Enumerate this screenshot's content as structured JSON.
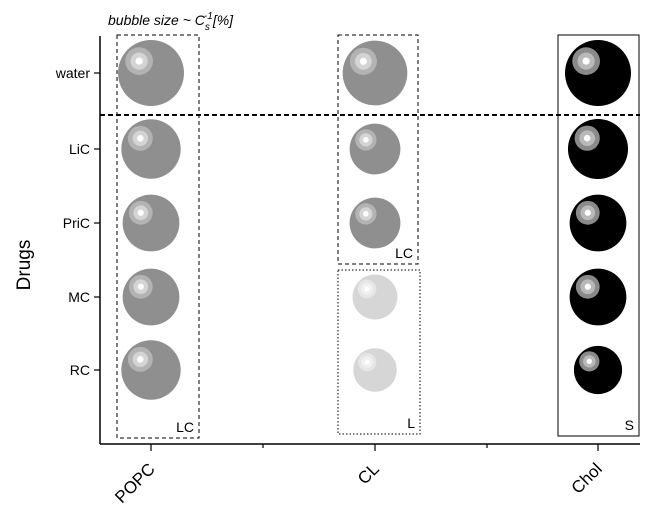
{
  "chart_data": {
    "type": "scatter",
    "title": "",
    "xlabel": "",
    "ylabel": "Drugs",
    "annotation": "bubble size ~ C_s^-1 [%]",
    "annotation_parts": {
      "prefix": "bubble size ~ C",
      "sub": "s",
      "sup": "-1",
      "suffix": "[%]"
    },
    "categories_x": [
      "POPC",
      "CL",
      "Chol"
    ],
    "categories_y": [
      "water",
      "LiC",
      "PriC",
      "MC",
      "RC"
    ],
    "grid": false,
    "legend": "none",
    "separator_after": "water",
    "colors": {
      "POPC": "#8f8f8f",
      "CL_LC": "#8f8f8f",
      "CL_L": "#d6d6d6",
      "Chol": "#000000"
    },
    "bubbles": [
      {
        "x": "POPC",
        "y": "water",
        "size": 1.0,
        "phase": "LC"
      },
      {
        "x": "POPC",
        "y": "LiC",
        "size": 0.9,
        "phase": "LC"
      },
      {
        "x": "POPC",
        "y": "PriC",
        "size": 0.86,
        "phase": "LC"
      },
      {
        "x": "POPC",
        "y": "MC",
        "size": 0.86,
        "phase": "LC"
      },
      {
        "x": "POPC",
        "y": "RC",
        "size": 0.9,
        "phase": "LC"
      },
      {
        "x": "CL",
        "y": "water",
        "size": 0.98,
        "phase": "LC"
      },
      {
        "x": "CL",
        "y": "LiC",
        "size": 0.77,
        "phase": "LC"
      },
      {
        "x": "CL",
        "y": "PriC",
        "size": 0.77,
        "phase": "LC"
      },
      {
        "x": "CL",
        "y": "MC",
        "size": 0.68,
        "phase": "L"
      },
      {
        "x": "CL",
        "y": "RC",
        "size": 0.66,
        "phase": "L"
      },
      {
        "x": "Chol",
        "y": "water",
        "size": 1.0,
        "phase": "S"
      },
      {
        "x": "Chol",
        "y": "LiC",
        "size": 0.91,
        "phase": "S"
      },
      {
        "x": "Chol",
        "y": "PriC",
        "size": 0.86,
        "phase": "S"
      },
      {
        "x": "Chol",
        "y": "MC",
        "size": 0.86,
        "phase": "S"
      },
      {
        "x": "Chol",
        "y": "RC",
        "size": 0.73,
        "phase": "S"
      }
    ],
    "phase_boxes": [
      {
        "x": "POPC",
        "from": "water",
        "to": "RC",
        "label": "LC",
        "style": "dashed"
      },
      {
        "x": "CL",
        "from": "water",
        "to": "PriC",
        "label": "LC",
        "style": "dashed"
      },
      {
        "x": "CL",
        "from": "MC",
        "to": "RC",
        "label": "L",
        "style": "dotted"
      },
      {
        "x": "Chol",
        "from": "water",
        "to": "RC",
        "label": "S",
        "style": "solid"
      }
    ]
  }
}
